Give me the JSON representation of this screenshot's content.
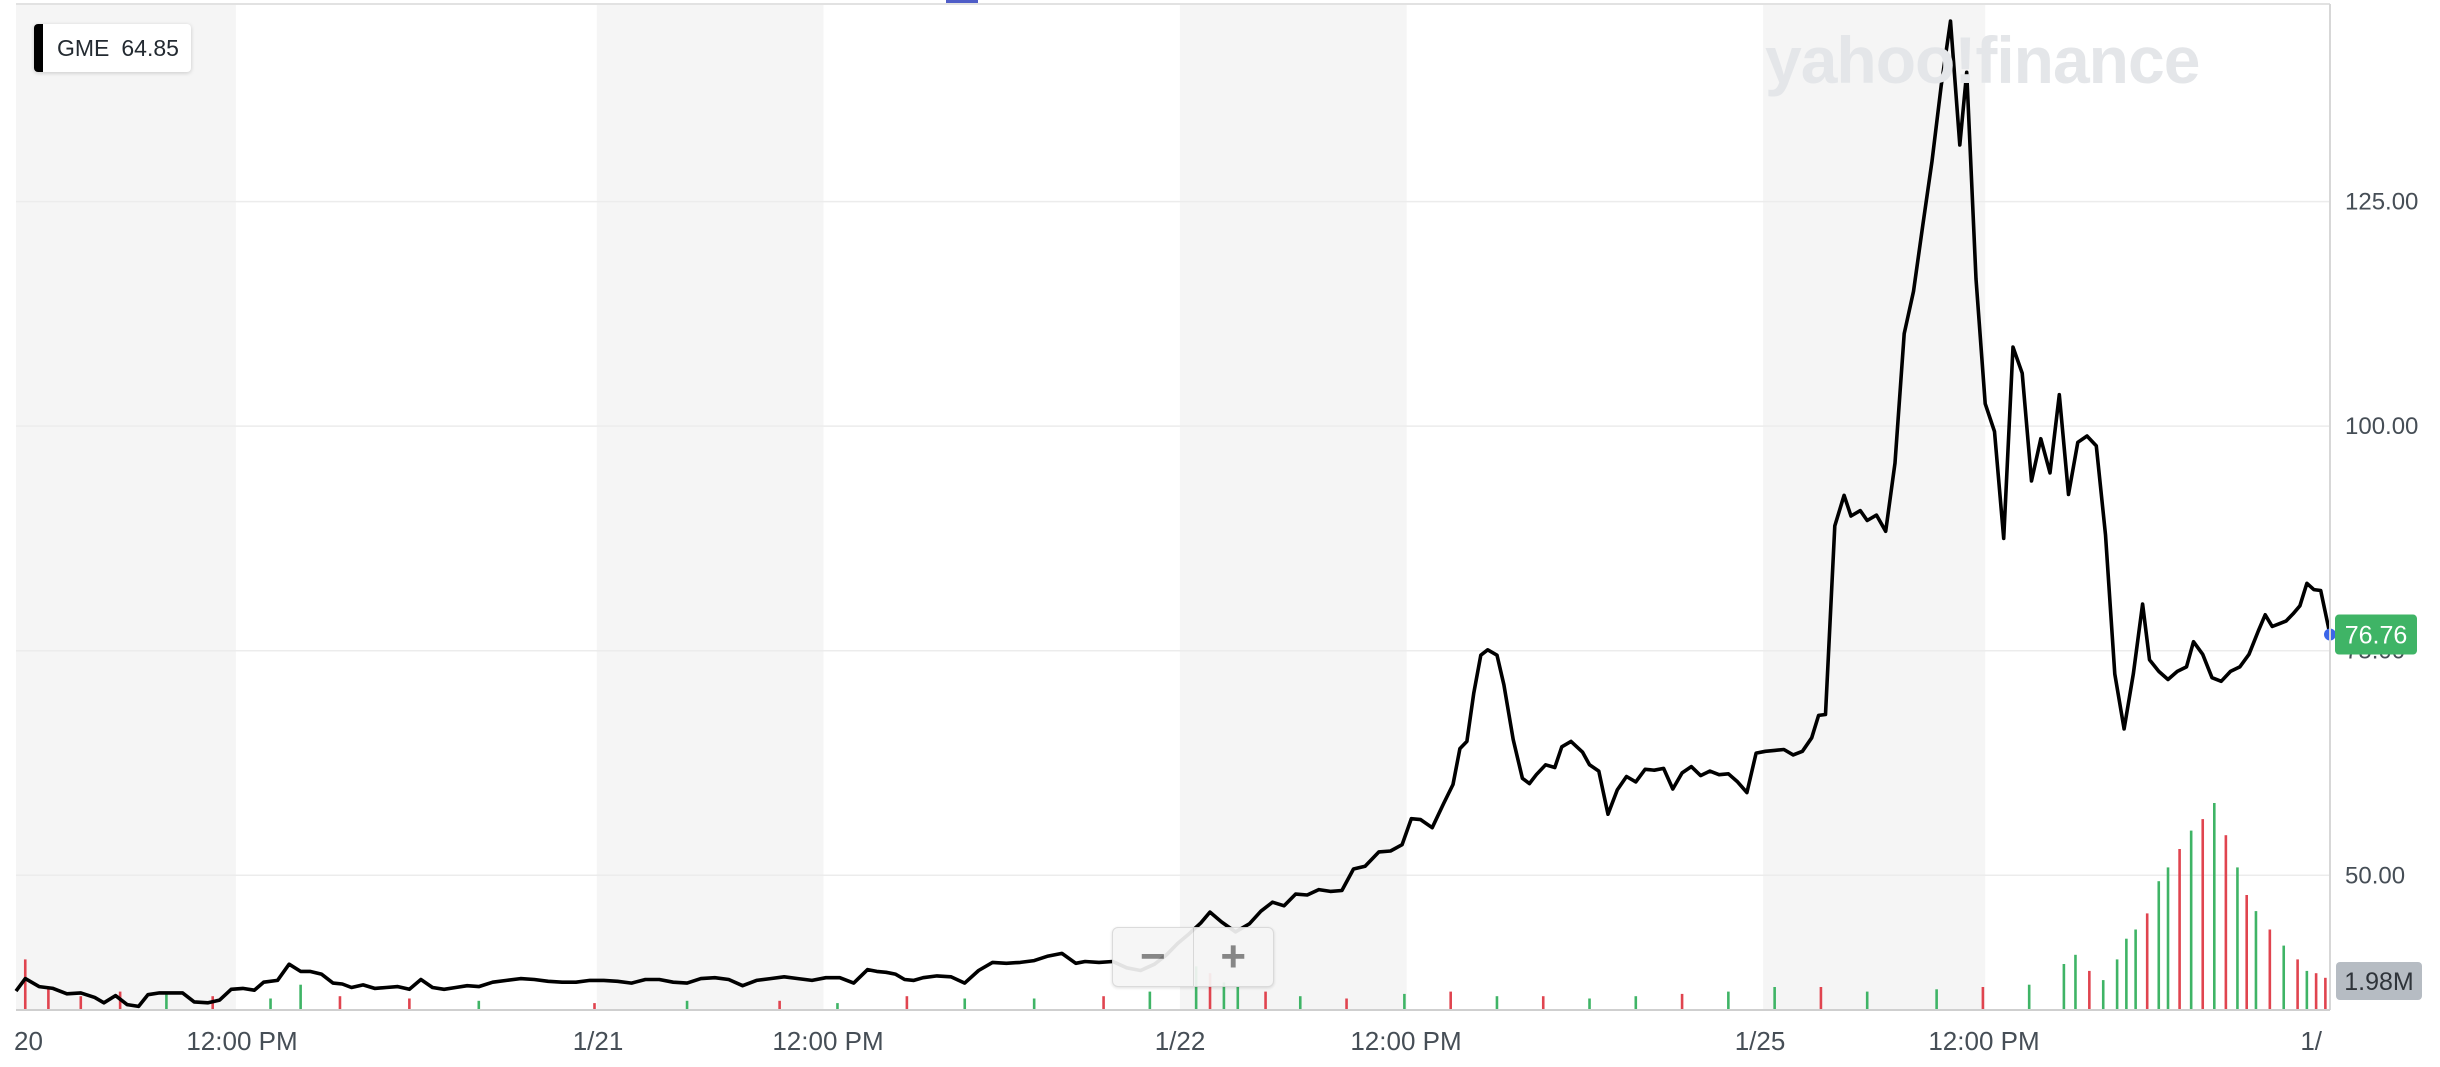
{
  "legend": {
    "symbol": "GME",
    "value": "64.85"
  },
  "watermark": "yahoo!finance",
  "zoom": {
    "minus": "−",
    "plus": "+"
  },
  "colors": {
    "line": "#000000",
    "volume_up": "#3fb466",
    "volume_down": "#e0444f",
    "last_price_badge": "#3fb466",
    "volume_badge": "#b6bcc3",
    "shaded_band": "#f5f5f5",
    "grid": "#ececec",
    "top_marker": "#4f5dc7"
  },
  "chart_data": {
    "type": "line",
    "title": "",
    "series": [
      {
        "name": "GME"
      }
    ],
    "x_ticks": [
      "20",
      "12:00 PM",
      "1/21",
      "12:00 PM",
      "1/22",
      "12:00 PM",
      "1/25",
      "12:00 PM",
      "1/"
    ],
    "y_ticks": [
      "125.00",
      "100.00",
      "75.00",
      "50.00"
    ],
    "y_tick_values": [
      125,
      100,
      75,
      50
    ],
    "ylim": [
      35,
      147
    ],
    "x_range": [
      0,
      1
    ],
    "last_price": "76.76",
    "volume_label": "1.98M",
    "grid": true,
    "points": [
      [
        0.0,
        37.1
      ],
      [
        0.004,
        38.5
      ],
      [
        0.01,
        37.6
      ],
      [
        0.016,
        37.4
      ],
      [
        0.022,
        36.8
      ],
      [
        0.028,
        36.9
      ],
      [
        0.034,
        36.4
      ],
      [
        0.038,
        35.8
      ],
      [
        0.043,
        36.6
      ],
      [
        0.048,
        35.6
      ],
      [
        0.053,
        35.4
      ],
      [
        0.057,
        36.7
      ],
      [
        0.062,
        36.9
      ],
      [
        0.067,
        36.9
      ],
      [
        0.072,
        36.9
      ],
      [
        0.077,
        35.9
      ],
      [
        0.083,
        35.8
      ],
      [
        0.088,
        36.1
      ],
      [
        0.093,
        37.3
      ],
      [
        0.098,
        37.4
      ],
      [
        0.103,
        37.2
      ],
      [
        0.107,
        38.1
      ],
      [
        0.113,
        38.3
      ],
      [
        0.118,
        40.1
      ],
      [
        0.123,
        39.3
      ],
      [
        0.127,
        39.3
      ],
      [
        0.132,
        39.0
      ],
      [
        0.137,
        38.0
      ],
      [
        0.141,
        37.9
      ],
      [
        0.145,
        37.5
      ],
      [
        0.15,
        37.8
      ],
      [
        0.155,
        37.4
      ],
      [
        0.16,
        37.5
      ],
      [
        0.165,
        37.6
      ],
      [
        0.17,
        37.3
      ],
      [
        0.175,
        38.4
      ],
      [
        0.18,
        37.5
      ],
      [
        0.185,
        37.3
      ],
      [
        0.19,
        37.5
      ],
      [
        0.195,
        37.7
      ],
      [
        0.2,
        37.6
      ],
      [
        0.206,
        38.1
      ],
      [
        0.212,
        38.3
      ],
      [
        0.218,
        38.5
      ],
      [
        0.224,
        38.4
      ],
      [
        0.23,
        38.2
      ],
      [
        0.236,
        38.1
      ],
      [
        0.242,
        38.1
      ],
      [
        0.248,
        38.3
      ],
      [
        0.254,
        38.3
      ],
      [
        0.26,
        38.2
      ],
      [
        0.266,
        38.0
      ],
      [
        0.272,
        38.4
      ],
      [
        0.278,
        38.4
      ],
      [
        0.284,
        38.1
      ],
      [
        0.29,
        38.0
      ],
      [
        0.296,
        38.5
      ],
      [
        0.302,
        38.6
      ],
      [
        0.308,
        38.4
      ],
      [
        0.314,
        37.7
      ],
      [
        0.32,
        38.3
      ],
      [
        0.326,
        38.5
      ],
      [
        0.332,
        38.7
      ],
      [
        0.338,
        38.5
      ],
      [
        0.344,
        38.3
      ],
      [
        0.35,
        38.6
      ],
      [
        0.356,
        38.6
      ],
      [
        0.362,
        38.0
      ],
      [
        0.368,
        39.5
      ],
      [
        0.372,
        39.3
      ],
      [
        0.376,
        39.2
      ],
      [
        0.38,
        39.0
      ],
      [
        0.384,
        38.4
      ],
      [
        0.388,
        38.3
      ],
      [
        0.392,
        38.6
      ],
      [
        0.398,
        38.8
      ],
      [
        0.404,
        38.7
      ],
      [
        0.41,
        38.0
      ],
      [
        0.416,
        39.4
      ],
      [
        0.422,
        40.3
      ],
      [
        0.428,
        40.2
      ],
      [
        0.434,
        40.3
      ],
      [
        0.44,
        40.5
      ],
      [
        0.446,
        41.0
      ],
      [
        0.452,
        41.3
      ],
      [
        0.458,
        40.2
      ],
      [
        0.462,
        40.4
      ],
      [
        0.468,
        40.3
      ],
      [
        0.474,
        40.4
      ],
      [
        0.48,
        39.7
      ],
      [
        0.486,
        39.4
      ],
      [
        0.492,
        40.1
      ],
      [
        0.497,
        41.1
      ],
      [
        0.502,
        42.4
      ],
      [
        0.507,
        43.5
      ],
      [
        0.512,
        44.7
      ],
      [
        0.516,
        45.9
      ],
      [
        0.521,
        44.8
      ],
      [
        0.527,
        43.7
      ],
      [
        0.533,
        44.6
      ],
      [
        0.538,
        46.0
      ],
      [
        0.543,
        47.0
      ],
      [
        0.548,
        46.6
      ],
      [
        0.553,
        47.9
      ],
      [
        0.558,
        47.8
      ],
      [
        0.563,
        48.4
      ],
      [
        0.568,
        48.2
      ],
      [
        0.573,
        48.3
      ],
      [
        0.578,
        50.7
      ],
      [
        0.583,
        51.0
      ],
      [
        0.589,
        52.6
      ],
      [
        0.594,
        52.7
      ],
      [
        0.599,
        53.4
      ],
      [
        0.603,
        56.3
      ],
      [
        0.607,
        56.2
      ],
      [
        0.612,
        55.3
      ],
      [
        0.617,
        58.0
      ],
      [
        0.621,
        60.1
      ],
      [
        0.624,
        64.1
      ],
      [
        0.627,
        64.9
      ],
      [
        0.63,
        70.3
      ],
      [
        0.633,
        74.5
      ],
      [
        0.636,
        75.1
      ],
      [
        0.64,
        74.5
      ],
      [
        0.643,
        71.2
      ],
      [
        0.647,
        65.1
      ],
      [
        0.651,
        60.8
      ],
      [
        0.654,
        60.2
      ],
      [
        0.657,
        61.2
      ],
      [
        0.661,
        62.3
      ],
      [
        0.665,
        62.0
      ],
      [
        0.668,
        64.3
      ],
      [
        0.672,
        64.9
      ],
      [
        0.677,
        63.7
      ],
      [
        0.68,
        62.3
      ],
      [
        0.684,
        61.6
      ],
      [
        0.688,
        56.8
      ],
      [
        0.692,
        59.5
      ],
      [
        0.696,
        61.0
      ],
      [
        0.7,
        60.4
      ],
      [
        0.704,
        61.8
      ],
      [
        0.708,
        61.7
      ],
      [
        0.712,
        61.9
      ],
      [
        0.716,
        59.6
      ],
      [
        0.72,
        61.4
      ],
      [
        0.724,
        62.1
      ],
      [
        0.728,
        61.1
      ],
      [
        0.732,
        61.6
      ],
      [
        0.736,
        61.2
      ],
      [
        0.74,
        61.3
      ],
      [
        0.744,
        60.4
      ],
      [
        0.748,
        59.2
      ],
      [
        0.752,
        63.6
      ],
      [
        0.756,
        63.8
      ],
      [
        0.76,
        63.9
      ],
      [
        0.764,
        64.0
      ],
      [
        0.768,
        63.4
      ],
      [
        0.772,
        63.8
      ],
      [
        0.776,
        65.3
      ],
      [
        0.779,
        67.8
      ],
      [
        0.782,
        67.9
      ],
      [
        0.786,
        88.9
      ],
      [
        0.79,
        92.3
      ],
      [
        0.793,
        90.0
      ],
      [
        0.797,
        90.6
      ],
      [
        0.8,
        89.5
      ],
      [
        0.804,
        90.1
      ],
      [
        0.808,
        88.3
      ],
      [
        0.812,
        95.9
      ],
      [
        0.816,
        110.3
      ],
      [
        0.82,
        115.0
      ],
      [
        0.824,
        122.3
      ],
      [
        0.828,
        129.5
      ],
      [
        0.832,
        137.9
      ],
      [
        0.836,
        145.1
      ],
      [
        0.84,
        131.3
      ],
      [
        0.843,
        139.4
      ],
      [
        0.847,
        116.4
      ],
      [
        0.851,
        102.5
      ],
      [
        0.855,
        99.4
      ],
      [
        0.859,
        87.5
      ],
      [
        0.863,
        108.8
      ],
      [
        0.867,
        105.9
      ],
      [
        0.871,
        93.9
      ],
      [
        0.875,
        98.6
      ],
      [
        0.879,
        94.8
      ],
      [
        0.883,
        103.5
      ],
      [
        0.887,
        92.4
      ],
      [
        0.891,
        98.2
      ],
      [
        0.895,
        98.9
      ],
      [
        0.899,
        97.8
      ],
      [
        0.903,
        87.9
      ],
      [
        0.907,
        72.4
      ],
      [
        0.911,
        66.3
      ],
      [
        0.915,
        72.4
      ],
      [
        0.919,
        80.2
      ],
      [
        0.922,
        74.0
      ],
      [
        0.926,
        72.7
      ],
      [
        0.93,
        71.8
      ],
      [
        0.934,
        72.7
      ],
      [
        0.938,
        73.2
      ],
      [
        0.941,
        76.0
      ],
      [
        0.945,
        74.6
      ],
      [
        0.949,
        72.0
      ],
      [
        0.953,
        71.6
      ],
      [
        0.957,
        72.7
      ],
      [
        0.961,
        73.2
      ],
      [
        0.965,
        74.6
      ],
      [
        0.969,
        77.2
      ],
      [
        0.972,
        79.0
      ],
      [
        0.975,
        77.7
      ],
      [
        0.978,
        78.0
      ],
      [
        0.981,
        78.3
      ],
      [
        0.984,
        79.1
      ],
      [
        0.987,
        80.0
      ],
      [
        0.99,
        82.5
      ],
      [
        0.993,
        81.8
      ],
      [
        0.996,
        81.7
      ],
      [
        1.0,
        76.8
      ]
    ],
    "volume": {
      "max": 100,
      "bars": [
        [
          0.004,
          22,
          "d"
        ],
        [
          0.014,
          10,
          "d"
        ],
        [
          0.028,
          6,
          "d"
        ],
        [
          0.045,
          8,
          "d"
        ],
        [
          0.065,
          7,
          "u"
        ],
        [
          0.085,
          6,
          "d"
        ],
        [
          0.11,
          5,
          "u"
        ],
        [
          0.123,
          11,
          "u"
        ],
        [
          0.14,
          6,
          "d"
        ],
        [
          0.17,
          5,
          "d"
        ],
        [
          0.2,
          4,
          "u"
        ],
        [
          0.25,
          3,
          "d"
        ],
        [
          0.29,
          4,
          "u"
        ],
        [
          0.33,
          4,
          "d"
        ],
        [
          0.355,
          3,
          "u"
        ],
        [
          0.385,
          6,
          "d"
        ],
        [
          0.41,
          5,
          "u"
        ],
        [
          0.44,
          5,
          "u"
        ],
        [
          0.47,
          6,
          "d"
        ],
        [
          0.49,
          8,
          "u"
        ],
        [
          0.51,
          19,
          "u"
        ],
        [
          0.516,
          16,
          "d"
        ],
        [
          0.522,
          12,
          "u"
        ],
        [
          0.528,
          10,
          "u"
        ],
        [
          0.54,
          8,
          "d"
        ],
        [
          0.555,
          6,
          "u"
        ],
        [
          0.575,
          5,
          "d"
        ],
        [
          0.6,
          7,
          "u"
        ],
        [
          0.62,
          8,
          "d"
        ],
        [
          0.64,
          6,
          "u"
        ],
        [
          0.66,
          6,
          "d"
        ],
        [
          0.68,
          5,
          "u"
        ],
        [
          0.7,
          6,
          "u"
        ],
        [
          0.72,
          7,
          "d"
        ],
        [
          0.74,
          8,
          "u"
        ],
        [
          0.76,
          10,
          "u"
        ],
        [
          0.78,
          10,
          "d"
        ],
        [
          0.8,
          8,
          "u"
        ],
        [
          0.83,
          9,
          "u"
        ],
        [
          0.85,
          10,
          "d"
        ],
        [
          0.87,
          11,
          "u"
        ],
        [
          0.885,
          20,
          "u"
        ],
        [
          0.89,
          24,
          "u"
        ],
        [
          0.896,
          17,
          "d"
        ],
        [
          0.902,
          13,
          "u"
        ],
        [
          0.908,
          22,
          "u"
        ],
        [
          0.912,
          31,
          "u"
        ],
        [
          0.916,
          35,
          "u"
        ],
        [
          0.921,
          42,
          "d"
        ],
        [
          0.926,
          56,
          "u"
        ],
        [
          0.93,
          62,
          "u"
        ],
        [
          0.935,
          70,
          "d"
        ],
        [
          0.94,
          78,
          "u"
        ],
        [
          0.945,
          83,
          "d"
        ],
        [
          0.95,
          90,
          "u"
        ],
        [
          0.955,
          76,
          "d"
        ],
        [
          0.96,
          62,
          "u"
        ],
        [
          0.964,
          50,
          "d"
        ],
        [
          0.968,
          43,
          "u"
        ],
        [
          0.974,
          35,
          "d"
        ],
        [
          0.98,
          28,
          "u"
        ],
        [
          0.986,
          22,
          "d"
        ],
        [
          0.99,
          17,
          "u"
        ],
        [
          0.994,
          16,
          "d"
        ],
        [
          0.998,
          14,
          "d"
        ]
      ]
    }
  }
}
